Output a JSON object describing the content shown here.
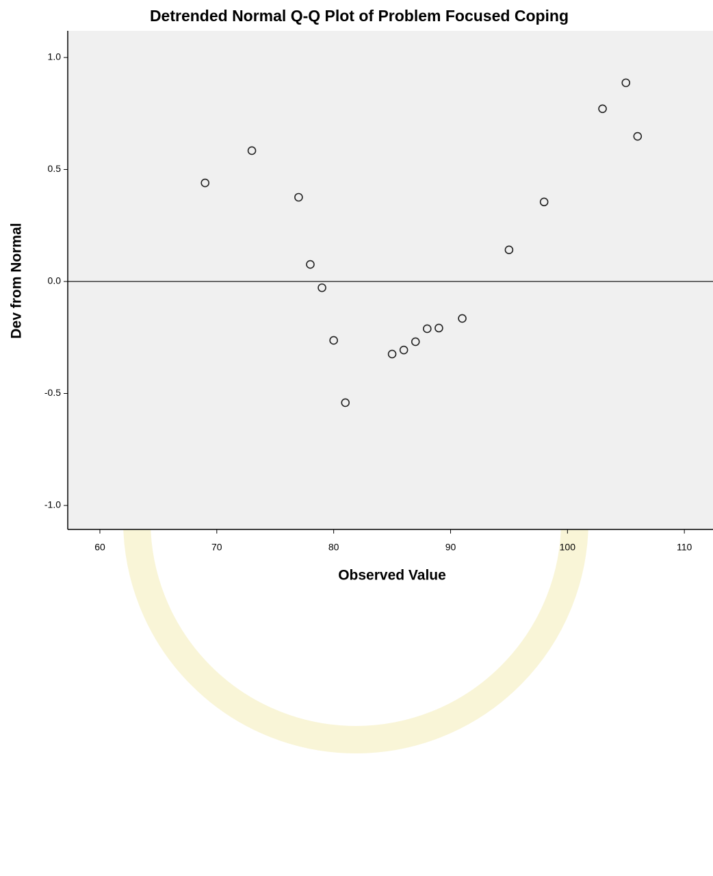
{
  "chart_data": {
    "type": "scatter",
    "title": "Detrended Normal Q-Q Plot of Problem Focused Coping",
    "x_label": "Observed Value",
    "y_label": "Dev from Normal",
    "series": [
      {
        "color": "#222222",
        "x": [
          69,
          73,
          77,
          78,
          79,
          80,
          81,
          85,
          86,
          87,
          88,
          89,
          91,
          95,
          98,
          103,
          105,
          106
        ],
        "values": [
          0.44,
          0.584,
          0.376,
          0.076,
          -0.028,
          -0.263,
          -0.541,
          -0.324,
          -0.306,
          -0.269,
          -0.211,
          -0.208,
          -0.165,
          0.141,
          0.355,
          0.771,
          0.887,
          0.648
        ]
      }
    ],
    "reference_line": 0,
    "xlim": [
      57.25,
      112.45
    ],
    "ylim": [
      -1.107,
      1.119
    ],
    "xticks": [
      60,
      70,
      80,
      90,
      100,
      110
    ],
    "yticks": [
      {
        "value": -1,
        "label": "-1.0"
      },
      -0.5,
      {
        "value": 0,
        "label": "0.0"
      },
      0.5,
      {
        "value": 1,
        "label": "1.0"
      }
    ],
    "grid": false
  }
}
